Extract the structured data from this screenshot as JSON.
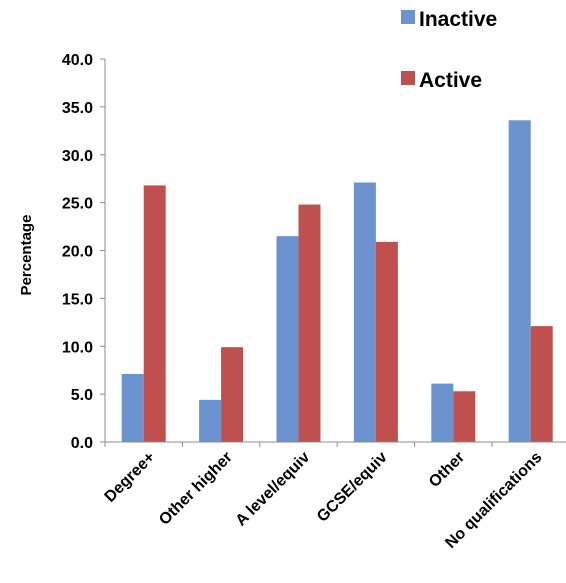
{
  "chart_data": {
    "type": "bar",
    "title": "",
    "xlabel": "",
    "ylabel": "Percentage",
    "ylim": [
      0,
      40
    ],
    "yticks": [
      "0.0",
      "5.0",
      "10.0",
      "15.0",
      "20.0",
      "25.0",
      "30.0",
      "35.0",
      "40.0"
    ],
    "categories": [
      "Degree+",
      "Other higher",
      "A level/equiv",
      "GCSE/equiv",
      "Other",
      "No qualifications"
    ],
    "series": [
      {
        "name": "Inactive",
        "color": "#6a93cf",
        "values": [
          7.1,
          4.4,
          21.5,
          27.1,
          6.1,
          33.6
        ]
      },
      {
        "name": "Active",
        "color": "#c0504d",
        "values": [
          26.8,
          9.9,
          24.8,
          20.9,
          5.3,
          12.1
        ]
      }
    ],
    "legend_position": "top-right",
    "grid": false
  }
}
